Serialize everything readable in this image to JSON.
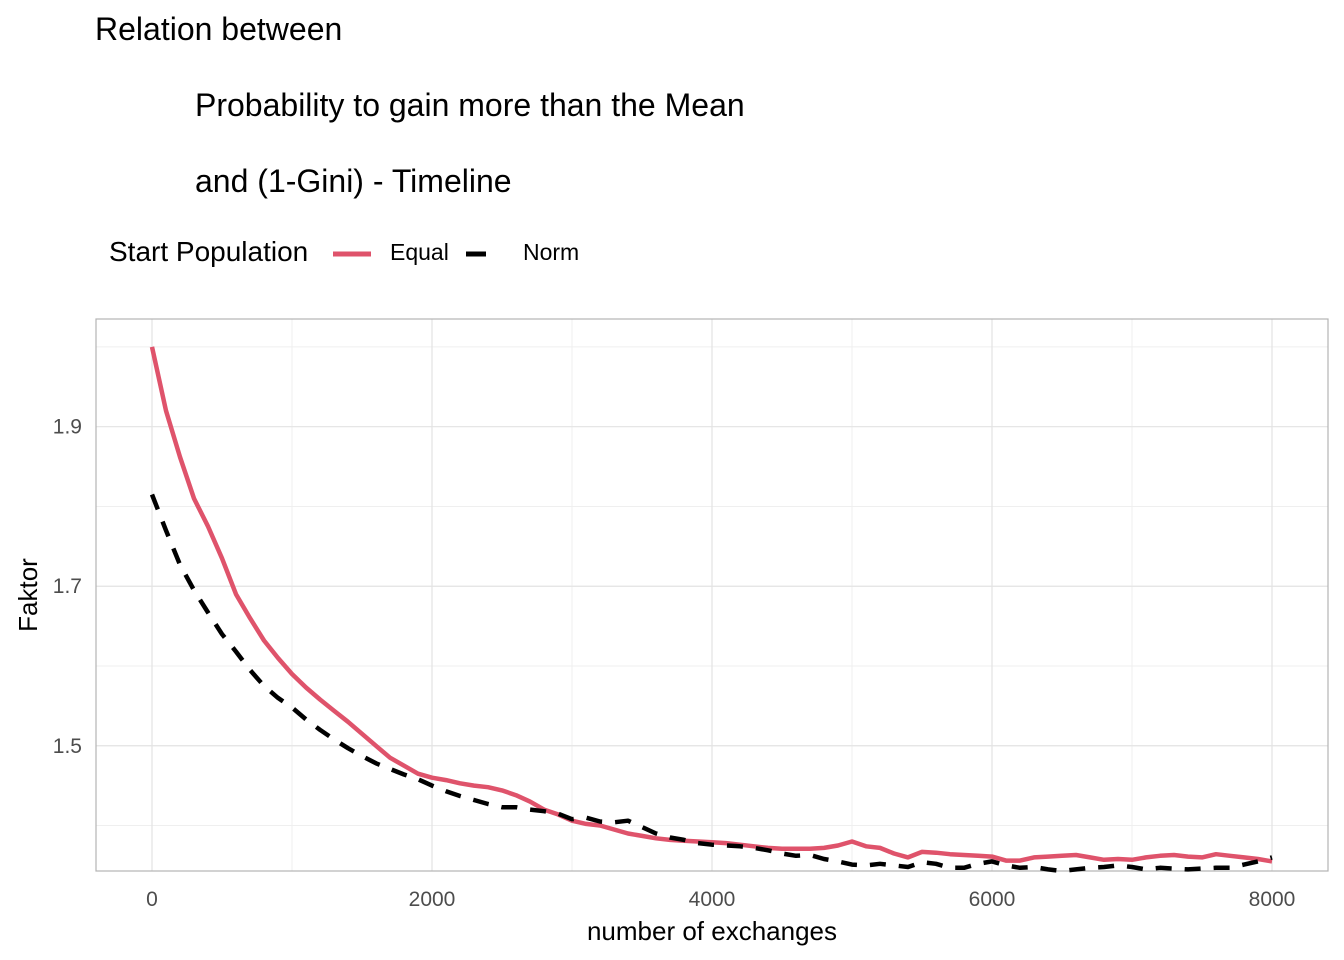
{
  "title_lines": [
    "Relation between",
    "Probability to gain more than the Mean",
    "and (1-Gini) - Timeline"
  ],
  "chart_data": {
    "type": "line",
    "title": "Relation between\n\tProbability to gain more than the Mean\n\tand (1-Gini) - Timeline",
    "xlabel": "number of exchanges",
    "ylabel": "Faktor",
    "xlim": [
      -400,
      8400
    ],
    "ylim": [
      1.343,
      2.035
    ],
    "x_ticks": [
      0,
      2000,
      4000,
      6000,
      8000
    ],
    "x_tick_labels": [
      "0",
      "2000",
      "4000",
      "6000",
      "8000"
    ],
    "y_ticks": [
      1.5,
      1.7,
      1.9
    ],
    "y_tick_labels": [
      "1.5",
      "1.7",
      "1.9"
    ],
    "y_minor_ticks": [
      1.4,
      1.6,
      1.8,
      2.0
    ],
    "x_minor_ticks": [
      1000,
      3000,
      5000,
      7000
    ],
    "grid": true,
    "legend": {
      "title": "Start Population",
      "position": "top-left",
      "entries": [
        "Equal",
        "Norm"
      ]
    },
    "colors": {
      "Equal": "#DF536B",
      "Norm": "#000000",
      "grid": "#e3e3e3",
      "border": "#b3b3b3"
    },
    "series": [
      {
        "name": "Equal",
        "style": "solid",
        "x": [
          0,
          100,
          200,
          300,
          400,
          500,
          600,
          700,
          800,
          900,
          1000,
          1100,
          1200,
          1300,
          1400,
          1500,
          1600,
          1700,
          1800,
          1900,
          2000,
          2100,
          2200,
          2300,
          2400,
          2500,
          2600,
          2700,
          2800,
          2900,
          3000,
          3100,
          3200,
          3300,
          3400,
          3500,
          3600,
          3700,
          3800,
          3900,
          4000,
          4100,
          4200,
          4300,
          4400,
          4500,
          4600,
          4700,
          4800,
          4900,
          5000,
          5100,
          5200,
          5300,
          5400,
          5500,
          5600,
          5700,
          5800,
          5900,
          6000,
          6100,
          6200,
          6300,
          6400,
          6500,
          6600,
          6700,
          6800,
          6900,
          7000,
          7100,
          7200,
          7300,
          7400,
          7500,
          7600,
          7700,
          7800,
          7900,
          8000
        ],
        "values": [
          2.0,
          1.92,
          1.862,
          1.81,
          1.775,
          1.735,
          1.69,
          1.66,
          1.632,
          1.61,
          1.59,
          1.573,
          1.558,
          1.544,
          1.53,
          1.515,
          1.5,
          1.485,
          1.475,
          1.465,
          1.46,
          1.457,
          1.453,
          1.45,
          1.448,
          1.444,
          1.438,
          1.43,
          1.42,
          1.414,
          1.406,
          1.402,
          1.4,
          1.395,
          1.39,
          1.387,
          1.384,
          1.382,
          1.381,
          1.38,
          1.379,
          1.378,
          1.376,
          1.374,
          1.372,
          1.371,
          1.371,
          1.371,
          1.372,
          1.375,
          1.38,
          1.374,
          1.372,
          1.365,
          1.36,
          1.367,
          1.366,
          1.364,
          1.363,
          1.362,
          1.361,
          1.356,
          1.356,
          1.36,
          1.361,
          1.362,
          1.363,
          1.36,
          1.357,
          1.358,
          1.357,
          1.36,
          1.362,
          1.363,
          1.361,
          1.36,
          1.364,
          1.362,
          1.36,
          1.358,
          1.355
        ]
      },
      {
        "name": "Norm",
        "style": "dashed",
        "x": [
          0,
          100,
          200,
          300,
          400,
          500,
          600,
          700,
          800,
          900,
          1000,
          1100,
          1200,
          1300,
          1400,
          1500,
          1600,
          1700,
          1800,
          1900,
          2000,
          2100,
          2200,
          2300,
          2400,
          2500,
          2600,
          2700,
          2800,
          2900,
          3000,
          3100,
          3200,
          3300,
          3400,
          3500,
          3600,
          3700,
          3800,
          3900,
          4000,
          4100,
          4200,
          4300,
          4400,
          4500,
          4600,
          4700,
          4800,
          4900,
          5000,
          5100,
          5200,
          5300,
          5400,
          5500,
          5600,
          5700,
          5800,
          5900,
          6000,
          6100,
          6200,
          6300,
          6400,
          6500,
          6600,
          6700,
          6800,
          6900,
          7000,
          7100,
          7200,
          7300,
          7400,
          7500,
          7600,
          7700,
          7800,
          7900,
          8000
        ],
        "values": [
          1.815,
          1.77,
          1.727,
          1.695,
          1.667,
          1.64,
          1.618,
          1.595,
          1.575,
          1.56,
          1.548,
          1.533,
          1.52,
          1.508,
          1.497,
          1.487,
          1.478,
          1.471,
          1.464,
          1.458,
          1.45,
          1.443,
          1.437,
          1.432,
          1.427,
          1.423,
          1.423,
          1.42,
          1.418,
          1.415,
          1.408,
          1.41,
          1.405,
          1.404,
          1.406,
          1.398,
          1.39,
          1.385,
          1.382,
          1.378,
          1.376,
          1.375,
          1.374,
          1.372,
          1.369,
          1.365,
          1.362,
          1.363,
          1.358,
          1.355,
          1.351,
          1.35,
          1.352,
          1.35,
          1.348,
          1.354,
          1.352,
          1.347,
          1.347,
          1.352,
          1.355,
          1.35,
          1.347,
          1.348,
          1.345,
          1.343,
          1.345,
          1.347,
          1.348,
          1.35,
          1.348,
          1.345,
          1.347,
          1.346,
          1.345,
          1.346,
          1.347,
          1.347,
          1.351,
          1.355,
          1.36
        ]
      }
    ]
  }
}
